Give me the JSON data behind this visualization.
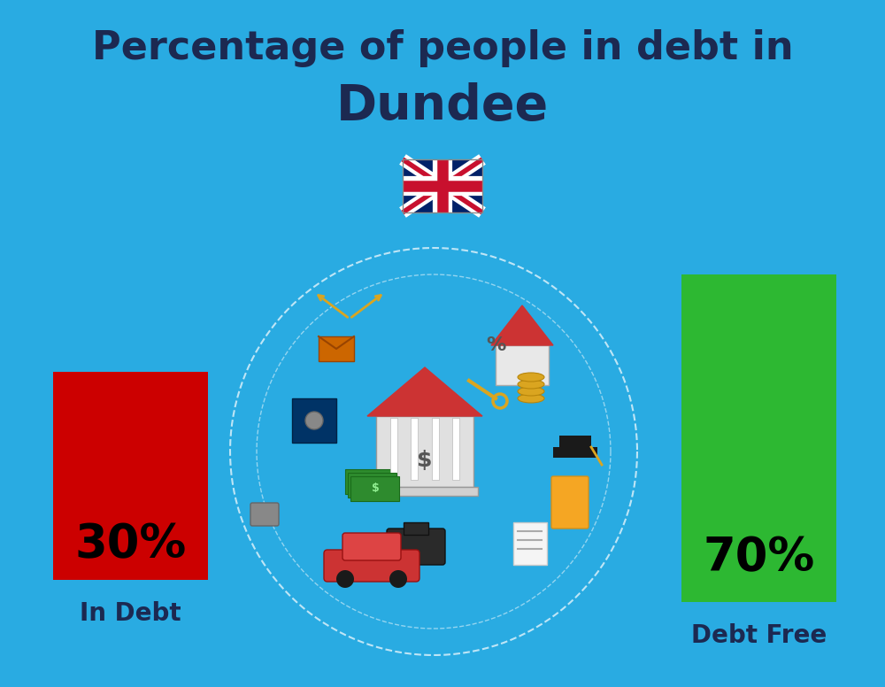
{
  "title_line1": "Percentage of people in debt in",
  "title_line2": "Dundee",
  "bg_color": "#29ABE2",
  "bar1_label": "30%",
  "bar1_color": "#CC0000",
  "bar1_category": "In Debt",
  "bar2_label": "70%",
  "bar2_color": "#2DB832",
  "bar2_category": "Debt Free",
  "title_color": "#1C2951",
  "label_color": "#1C2951",
  "percent_fontsize": 38,
  "category_fontsize": 20,
  "title_fontsize1": 32,
  "title_fontsize2": 40,
  "flag_colors": {
    "blue": "#012169",
    "red": "#C8102E",
    "white": "#FFFFFF"
  }
}
